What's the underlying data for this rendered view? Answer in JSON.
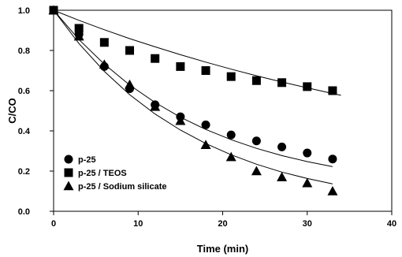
{
  "chart_data": {
    "type": "scatter",
    "title": "",
    "xlabel": "Time (min)",
    "ylabel": "C/CO",
    "xlim": [
      0,
      40
    ],
    "ylim": [
      0.0,
      1.0
    ],
    "x_ticks": [
      0,
      10,
      20,
      30,
      40
    ],
    "y_ticks": [
      0.0,
      0.2,
      0.4,
      0.6,
      0.8,
      1.0
    ],
    "x_tick_labels": [
      "0",
      "10",
      "20",
      "30",
      "40"
    ],
    "y_tick_labels": [
      "0.0",
      "0.2",
      "0.4",
      "0.6",
      "0.8",
      "1.0"
    ],
    "grid": false,
    "legend_position": "bottom-left",
    "series": [
      {
        "name": "p-25",
        "marker": "circle",
        "color": "#000000",
        "points": [
          [
            0,
            1.0
          ],
          [
            3,
            0.88
          ],
          [
            6,
            0.72
          ],
          [
            9,
            0.61
          ],
          [
            12,
            0.53
          ],
          [
            15,
            0.47
          ],
          [
            18,
            0.43
          ],
          [
            21,
            0.38
          ],
          [
            24,
            0.35
          ],
          [
            27,
            0.32
          ],
          [
            30,
            0.29
          ],
          [
            33,
            0.26
          ]
        ],
        "fit": [
          [
            0,
            1.0
          ],
          [
            3,
            0.854
          ],
          [
            6,
            0.732
          ],
          [
            9,
            0.628
          ],
          [
            12,
            0.541
          ],
          [
            15,
            0.468
          ],
          [
            18,
            0.407
          ],
          [
            21,
            0.356
          ],
          [
            24,
            0.313
          ],
          [
            27,
            0.277
          ],
          [
            30,
            0.247
          ],
          [
            33,
            0.222
          ]
        ]
      },
      {
        "name": "p-25 / TEOS",
        "marker": "square",
        "color": "#000000",
        "points": [
          [
            0,
            1.0
          ],
          [
            3,
            0.91
          ],
          [
            6,
            0.84
          ],
          [
            9,
            0.8
          ],
          [
            12,
            0.76
          ],
          [
            15,
            0.72
          ],
          [
            18,
            0.7
          ],
          [
            21,
            0.67
          ],
          [
            24,
            0.65
          ],
          [
            27,
            0.64
          ],
          [
            30,
            0.62
          ],
          [
            33,
            0.6
          ]
        ],
        "fit": [
          [
            0,
            1.0
          ],
          [
            3,
            0.95
          ],
          [
            6,
            0.903
          ],
          [
            9,
            0.859
          ],
          [
            12,
            0.818
          ],
          [
            15,
            0.779
          ],
          [
            18,
            0.742
          ],
          [
            21,
            0.707
          ],
          [
            24,
            0.674
          ],
          [
            27,
            0.643
          ],
          [
            30,
            0.614
          ],
          [
            33,
            0.586
          ],
          [
            34,
            0.577
          ]
        ]
      },
      {
        "name": "p-25 / Sodium silicate",
        "marker": "triangle",
        "color": "#000000",
        "points": [
          [
            0,
            1.0
          ],
          [
            3,
            0.87
          ],
          [
            6,
            0.73
          ],
          [
            9,
            0.63
          ],
          [
            12,
            0.52
          ],
          [
            15,
            0.45
          ],
          [
            18,
            0.33
          ],
          [
            21,
            0.27
          ],
          [
            24,
            0.2
          ],
          [
            27,
            0.17
          ],
          [
            30,
            0.14
          ],
          [
            33,
            0.1
          ]
        ],
        "fit": [
          [
            0,
            1.0
          ],
          [
            3,
            0.834
          ],
          [
            6,
            0.696
          ],
          [
            9,
            0.58
          ],
          [
            12,
            0.484
          ],
          [
            15,
            0.404
          ],
          [
            18,
            0.337
          ],
          [
            21,
            0.281
          ],
          [
            24,
            0.234
          ],
          [
            27,
            0.195
          ],
          [
            30,
            0.163
          ],
          [
            33,
            0.136
          ]
        ]
      }
    ]
  }
}
